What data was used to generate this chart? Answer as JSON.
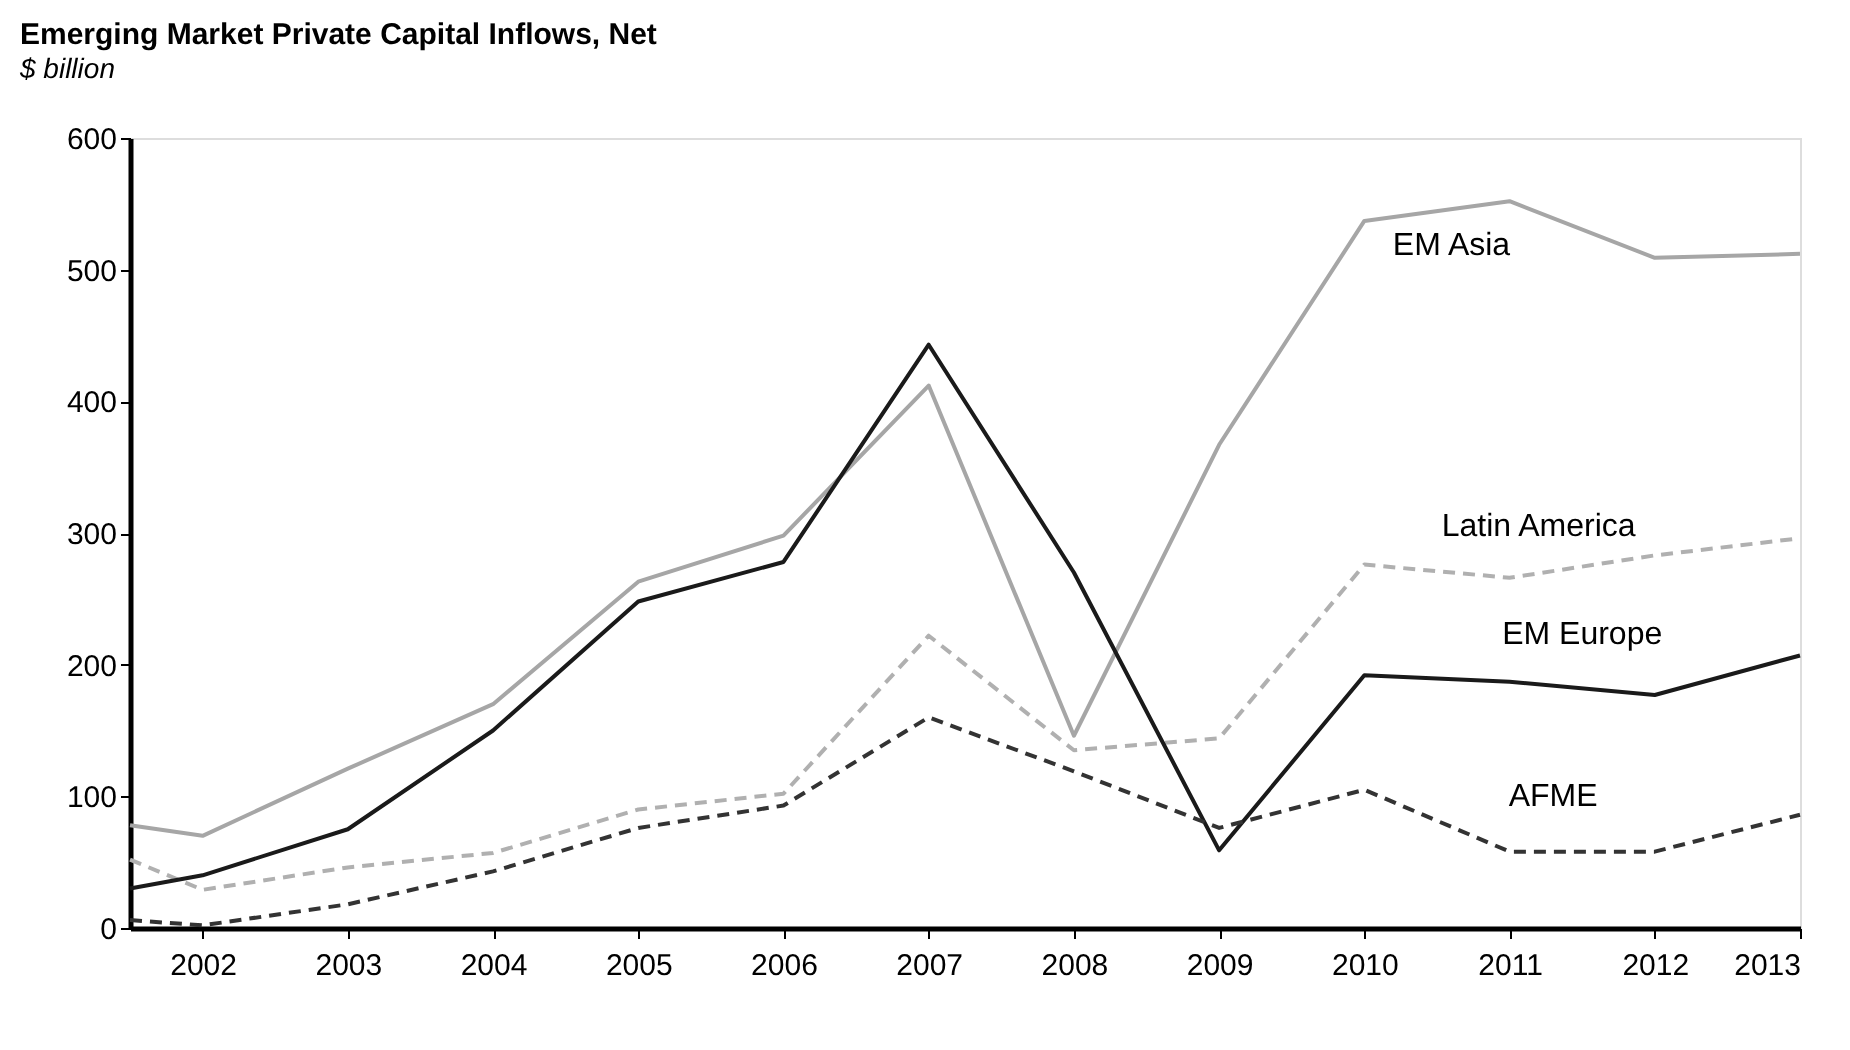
{
  "chart_data": {
    "type": "line",
    "title": "Emerging Market Private Capital Inflows, Net",
    "subtitle": "$ billion",
    "x": [
      2001.5,
      2002,
      2003,
      2004,
      2005,
      2006,
      2007,
      2008,
      2009,
      2010,
      2011,
      2012,
      2013
    ],
    "xlim": [
      2001.5,
      2013
    ],
    "xticks": [
      2002,
      2003,
      2004,
      2005,
      2006,
      2007,
      2008,
      2009,
      2010,
      2011,
      2012,
      2013
    ],
    "ylim": [
      0,
      600
    ],
    "yticks": [
      0,
      100,
      200,
      300,
      400,
      500,
      600
    ],
    "grid": false,
    "legend": false,
    "marker": "none",
    "series": [
      {
        "name": "EM Asia",
        "color": "#a6a6a6",
        "line_style": "solid",
        "values": [
          78,
          70,
          121,
          170,
          263,
          298,
          412,
          146,
          367,
          537,
          552,
          509,
          512
        ]
      },
      {
        "name": "Latin America",
        "color": "#b0b0b0",
        "line_style": "dashed",
        "values": [
          52,
          29,
          46,
          57,
          90,
          102,
          222,
          135,
          144,
          276,
          266,
          283,
          296
        ]
      },
      {
        "name": "EM Europe",
        "color": "#1a1a1a",
        "line_style": "solid",
        "values": [
          30,
          40,
          75,
          150,
          248,
          278,
          443,
          270,
          59,
          192,
          187,
          177,
          207
        ]
      },
      {
        "name": "AFME",
        "color": "#333333",
        "line_style": "dashed",
        "values": [
          6,
          2,
          18,
          43,
          76,
          93,
          160,
          119,
          76,
          105,
          58,
          58,
          86
        ]
      }
    ]
  }
}
